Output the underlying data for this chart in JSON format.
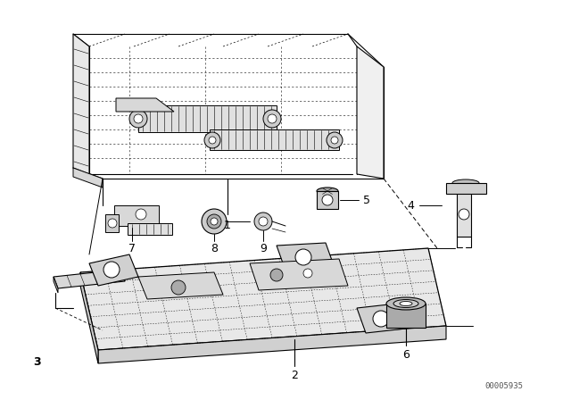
{
  "bg_color": "#ffffff",
  "line_color": "#000000",
  "watermark": "00005935",
  "figsize": [
    6.4,
    4.48
  ],
  "dpi": 100
}
